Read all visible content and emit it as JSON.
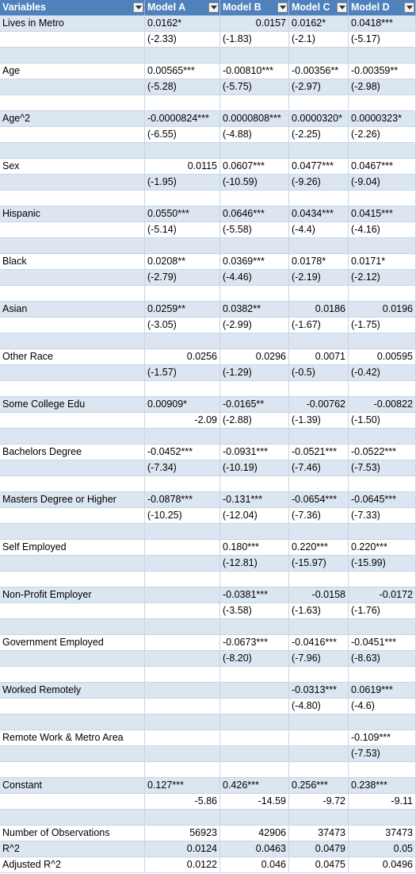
{
  "table": {
    "header": [
      "Variables",
      "Model A",
      "Model B",
      "Model C",
      "Model D"
    ],
    "rows": [
      [
        "Lives in Metro",
        "0.0162*",
        "0.0157",
        "0.0162*",
        "0.0418***"
      ],
      [
        null,
        "(-2.33)",
        "(-1.83)",
        "(-2.1)",
        "(-5.17)"
      ],
      [
        null,
        null,
        null,
        null,
        null
      ],
      [
        "Age",
        "0.00565***",
        "-0.00810***",
        "-0.00356**",
        "-0.00359**"
      ],
      [
        null,
        "(-5.28)",
        "(-5.75)",
        "(-2.97)",
        "(-2.98)"
      ],
      [
        null,
        null,
        null,
        null,
        null
      ],
      [
        "Age^2",
        "-0.0000824***",
        "0.0000808***",
        "0.0000320*",
        "0.0000323*"
      ],
      [
        null,
        "(-6.55)",
        "(-4.88)",
        "(-2.25)",
        "(-2.26)"
      ],
      [
        null,
        null,
        null,
        null,
        null
      ],
      [
        "Sex",
        "0.0115",
        "0.0607***",
        "0.0477***",
        "0.0467***"
      ],
      [
        null,
        "(-1.95)",
        "(-10.59)",
        "(-9.26)",
        "(-9.04)"
      ],
      [
        null,
        null,
        null,
        null,
        null
      ],
      [
        "Hispanic",
        "0.0550***",
        "0.0646***",
        "0.0434***",
        "0.0415***"
      ],
      [
        null,
        "(-5.14)",
        "(-5.58)",
        "(-4.4)",
        "(-4.16)"
      ],
      [
        null,
        null,
        null,
        null,
        null
      ],
      [
        "Black",
        "0.0208**",
        "0.0369***",
        "0.0178*",
        "0.0171*"
      ],
      [
        null,
        "(-2.79)",
        "(-4.46)",
        "(-2.19)",
        "(-2.12)"
      ],
      [
        null,
        null,
        null,
        null,
        null
      ],
      [
        "Asian",
        "0.0259**",
        "0.0382**",
        "0.0186",
        "0.0196"
      ],
      [
        null,
        "(-3.05)",
        "(-2.99)",
        "(-1.67)",
        "(-1.75)"
      ],
      [
        null,
        null,
        null,
        null,
        null
      ],
      [
        "Other Race",
        "0.0256",
        "0.0296",
        "0.0071",
        "0.00595"
      ],
      [
        null,
        "(-1.57)",
        "(-1.29)",
        "(-0.5)",
        "(-0.42)"
      ],
      [
        null,
        null,
        null,
        null,
        null
      ],
      [
        "Some College Edu",
        "0.00909*",
        "-0.0165**",
        "-0.00762",
        "-0.00822"
      ],
      [
        null,
        "-2.09",
        "(-2.88)",
        "(-1.39)",
        "(-1.50)"
      ],
      [
        null,
        null,
        null,
        null,
        null
      ],
      [
        "Bachelors Degree",
        "-0.0452***",
        "-0.0931***",
        "-0.0521***",
        "-0.0522***"
      ],
      [
        null,
        "(-7.34)",
        "(-10.19)",
        "(-7.46)",
        "(-7.53)"
      ],
      [
        null,
        null,
        null,
        null,
        null
      ],
      [
        "Masters Degree or Higher",
        "-0.0878***",
        "-0.131***",
        "-0.0654***",
        "-0.0645***"
      ],
      [
        null,
        "(-10.25)",
        "(-12.04)",
        "(-7.36)",
        "(-7.33)"
      ],
      [
        null,
        null,
        null,
        null,
        null
      ],
      [
        "Self Employed",
        null,
        "0.180***",
        "0.220***",
        "0.220***"
      ],
      [
        null,
        null,
        "(-12.81)",
        "(-15.97)",
        "(-15.99)"
      ],
      [
        null,
        null,
        null,
        null,
        null
      ],
      [
        "Non-Profit Employer",
        null,
        "-0.0381***",
        "-0.0158",
        "-0.0172"
      ],
      [
        null,
        null,
        "(-3.58)",
        "(-1.63)",
        "(-1.76)"
      ],
      [
        null,
        null,
        null,
        null,
        null
      ],
      [
        "Government Employed",
        null,
        "-0.0673***",
        "-0.0416***",
        "-0.0451***"
      ],
      [
        null,
        null,
        "(-8.20)",
        "(-7.96)",
        "(-8.63)"
      ],
      [
        null,
        null,
        null,
        null,
        null
      ],
      [
        "Worked Remotely",
        null,
        null,
        "-0.0313***",
        "0.0619***"
      ],
      [
        null,
        null,
        null,
        "(-4.80)",
        "(-4.6)"
      ],
      [
        null,
        null,
        null,
        null,
        null
      ],
      [
        "Remote Work & Metro Area",
        null,
        null,
        null,
        "-0.109***"
      ],
      [
        null,
        null,
        null,
        null,
        "(-7.53)"
      ],
      [
        null,
        null,
        null,
        null,
        null
      ],
      [
        "Constant",
        "0.127***",
        "0.426***",
        "0.256***",
        "0.238***"
      ],
      [
        null,
        "-5.86",
        "-14.59",
        "-9.72",
        "-9.11"
      ],
      [
        null,
        null,
        null,
        null,
        null
      ],
      [
        "Number of Observations",
        "56923",
        "42906",
        "37473",
        "37473"
      ],
      [
        "R^2",
        "0.0124",
        "0.0463",
        "0.0479",
        "0.05"
      ],
      [
        "Adjusted R^2",
        "0.0122",
        "0.046",
        "0.0475",
        "0.0496"
      ]
    ]
  }
}
